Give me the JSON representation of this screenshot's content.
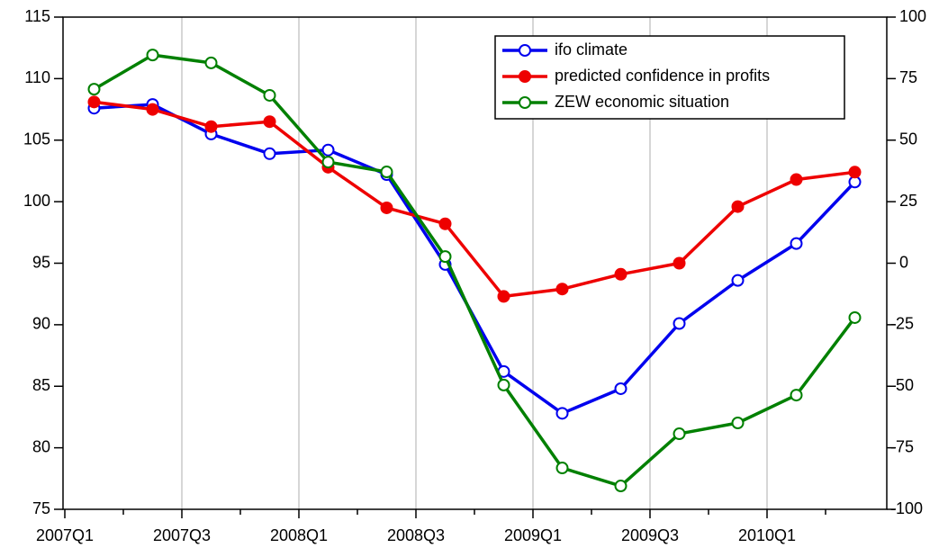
{
  "chart_data": {
    "type": "line",
    "categories": [
      "2007Q1",
      null,
      "2007Q3",
      null,
      "2008Q1",
      null,
      "2008Q3",
      null,
      "2009Q1",
      null,
      "2009Q3",
      null,
      "2010Q1",
      null
    ],
    "series": [
      {
        "name": "ifo climate",
        "color": "#0000ee",
        "marker": "open",
        "axis": "y",
        "values": [
          107.6,
          107.9,
          105.5,
          103.9,
          104.2,
          102.2,
          94.9,
          86.2,
          82.8,
          84.8,
          90.1,
          93.6,
          96.6,
          101.6
        ]
      },
      {
        "name": "predicted confidence in profits",
        "color": "#ee0000",
        "marker": "filled",
        "axis": "y",
        "values": [
          108.1,
          107.5,
          106.1,
          106.5,
          102.8,
          99.5,
          98.2,
          92.3,
          92.9,
          94.1,
          95.0,
          99.6,
          101.8,
          102.4
        ]
      },
      {
        "name": "ZEW economic situation",
        "color": "#008000",
        "marker": "open",
        "axis": "y2",
        "values": [
          70.7,
          84.6,
          81.4,
          68.2,
          41.1,
          37.1,
          2.7,
          -49.5,
          -83.2,
          -90.5,
          -69.3,
          -64.9,
          -53.6,
          -22.1
        ]
      }
    ],
    "ylim": [
      75,
      115
    ],
    "yticks": [
      75,
      80,
      85,
      90,
      95,
      100,
      105,
      110,
      115
    ],
    "y2lim": [
      -100,
      100
    ],
    "y2ticks": [
      -100,
      -75,
      -50,
      -25,
      0,
      25,
      50,
      75,
      100
    ],
    "xgrid": true,
    "legend": "upper right"
  }
}
